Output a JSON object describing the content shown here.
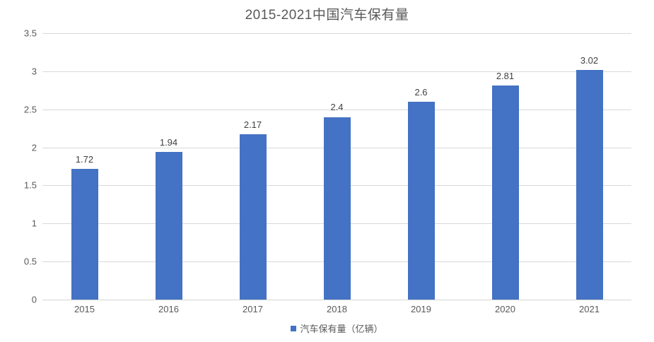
{
  "chart_data": {
    "type": "bar",
    "title": "2015-2021中国汽车保有量",
    "categories": [
      "2015",
      "2016",
      "2017",
      "2018",
      "2019",
      "2020",
      "2021"
    ],
    "values": [
      1.72,
      1.94,
      2.17,
      2.4,
      2.6,
      2.81,
      3.02
    ],
    "value_labels": [
      "1.72",
      "1.94",
      "2.17",
      "2.4",
      "2.6",
      "2.81",
      "3.02"
    ],
    "series_name": "汽车保有量（亿辆）",
    "xlabel": "",
    "ylabel": "",
    "ylim": [
      0,
      3.5
    ],
    "yticks": [
      0,
      0.5,
      1,
      1.5,
      2,
      2.5,
      3,
      3.5
    ],
    "ytick_labels": [
      "0",
      "0.5",
      "1",
      "1.5",
      "2",
      "2.5",
      "3",
      "3.5"
    ],
    "grid": true,
    "legend_position": "bottom-center",
    "bar_color": "#4472C4",
    "title_color": "#595959",
    "axis_text_color": "#595959",
    "data_label_color": "#404040",
    "gridline_color": "#d9d9d9"
  }
}
